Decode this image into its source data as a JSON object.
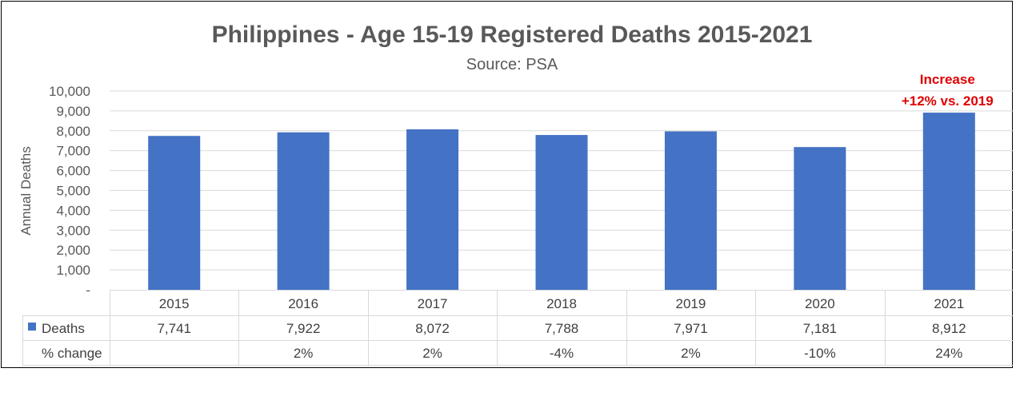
{
  "chart_data": {
    "type": "bar",
    "title": "Philippines - Age 15-19 Registered Deaths 2015-2021",
    "subtitle": "Source: PSA",
    "ylabel": "Annual Deaths",
    "xlabel": "",
    "ylim": [
      0,
      10000
    ],
    "y_ticks": [
      "-",
      "1,000",
      "2,000",
      "3,000",
      "4,000",
      "5,000",
      "6,000",
      "7,000",
      "8,000",
      "9,000",
      "10,000"
    ],
    "grid": true,
    "categories": [
      "2015",
      "2016",
      "2017",
      "2018",
      "2019",
      "2020",
      "2021"
    ],
    "series": [
      {
        "name": "Deaths",
        "color": "#4472C4",
        "values": [
          7741,
          7922,
          8072,
          7788,
          7971,
          7181,
          8912
        ],
        "labels": [
          "7,741",
          "7,922",
          "8,072",
          "7,788",
          "7,971",
          "7,181",
          "8,912"
        ]
      }
    ],
    "data_table": {
      "row_label_pct": "% change",
      "pct_change": [
        "",
        "2%",
        "2%",
        "-4%",
        "2%",
        "-10%",
        "24%"
      ]
    },
    "annotation": {
      "lines": [
        "Increase",
        "+12% vs. 2019"
      ],
      "category": "2021",
      "color": "#E00000"
    }
  }
}
